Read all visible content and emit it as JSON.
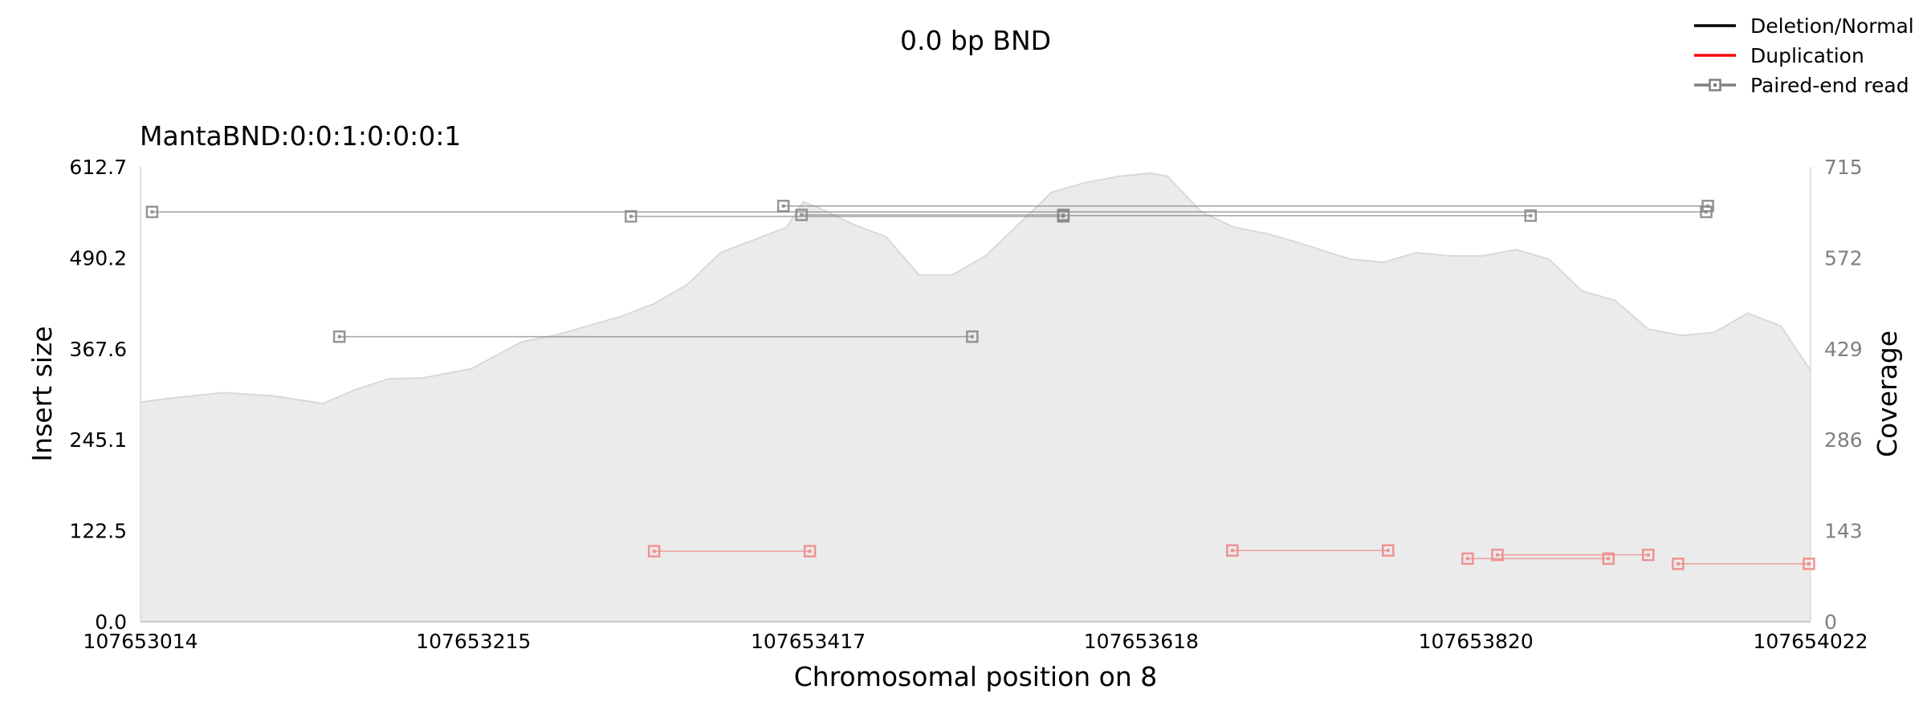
{
  "chart_data": {
    "type": "line",
    "title": "0.0 bp BND",
    "subtitle": "MantaBND:0:0:1:0:0:0:1",
    "xlabel": "Chromosomal position on 8",
    "ylabel": "Insert size",
    "ylabel_right": "Coverage",
    "xlim": [
      107653014,
      107654022
    ],
    "ylim": [
      0,
      612.7
    ],
    "ylim_right": [
      0,
      715
    ],
    "x_ticks": [
      "107653014",
      "107653215",
      "107653417",
      "107653618",
      "107653820",
      "107654022"
    ],
    "y_ticks": [
      "0.0",
      "122.5",
      "245.1",
      "367.6",
      "490.2",
      "612.7"
    ],
    "y_right_ticks": [
      "0",
      "143",
      "286",
      "429",
      "572",
      "715"
    ],
    "legend_position": "top-right",
    "legend": [
      {
        "label": "Deletion/Normal",
        "color": "#000000",
        "marker": false
      },
      {
        "label": "Duplication",
        "color": "#ff0000",
        "marker": false
      },
      {
        "label": "Paired-end read",
        "color": "#808080",
        "marker": true
      }
    ],
    "colors": {
      "normal_read": "#8a8a8a",
      "duplication_read": "#f08a8a",
      "coverage_fill": "#ebebeb",
      "coverage_line": "#d9d9d9",
      "right_axis_text": "#808080"
    },
    "coverage": {
      "x": [
        107653014,
        107653034,
        107653064,
        107653094,
        107653124,
        107653144,
        107653164,
        107653184,
        107653214,
        107653244,
        107653264,
        107653284,
        107653304,
        107653324,
        107653344,
        107653364,
        107653384,
        107653404,
        107653414,
        107653424,
        107653444,
        107653464,
        107653484,
        107653504,
        107653524,
        107653544,
        107653564,
        107653584,
        107653604,
        107653624,
        107653634,
        107653654,
        107653674,
        107653694,
        107653714,
        107653744,
        107653764,
        107653784,
        107653804,
        107653824,
        107653844,
        107653864,
        107653884,
        107653904,
        107653924,
        107653944,
        107653964,
        107653984,
        107654004,
        107654022
      ],
      "y": [
        345,
        352,
        360,
        355,
        343,
        365,
        382,
        383,
        398,
        440,
        450,
        465,
        480,
        500,
        530,
        580,
        600,
        620,
        660,
        650,
        625,
        605,
        545,
        545,
        575,
        625,
        675,
        690,
        700,
        705,
        700,
        645,
        620,
        610,
        595,
        570,
        565,
        580,
        575,
        575,
        585,
        570,
        520,
        505,
        460,
        450,
        455,
        485,
        465,
        395
      ]
    },
    "paired_end_reads": [
      {
        "type": "normal",
        "x1": 107653021,
        "x2": 107653959,
        "y": 552
      },
      {
        "type": "normal",
        "x1": 107653310,
        "x2": 107653571,
        "y": 546
      },
      {
        "type": "normal",
        "x1": 107653402,
        "x2": 107653960,
        "y": 560
      },
      {
        "type": "normal",
        "x1": 107653413,
        "x2": 107653571,
        "y": 548
      },
      {
        "type": "normal",
        "x1": 107653571,
        "x2": 107653853,
        "y": 547
      },
      {
        "type": "normal",
        "x1": 107653134,
        "x2": 107653516,
        "y": 384
      },
      {
        "type": "duplication",
        "x1": 107653324,
        "x2": 107653418,
        "y": 95
      },
      {
        "type": "duplication",
        "x1": 107653673,
        "x2": 107653767,
        "y": 96
      },
      {
        "type": "duplication",
        "x1": 107653815,
        "x2": 107653900,
        "y": 85
      },
      {
        "type": "duplication",
        "x1": 107653833,
        "x2": 107653924,
        "y": 90
      },
      {
        "type": "duplication",
        "x1": 107653942,
        "x2": 107654021,
        "y": 78
      }
    ]
  }
}
